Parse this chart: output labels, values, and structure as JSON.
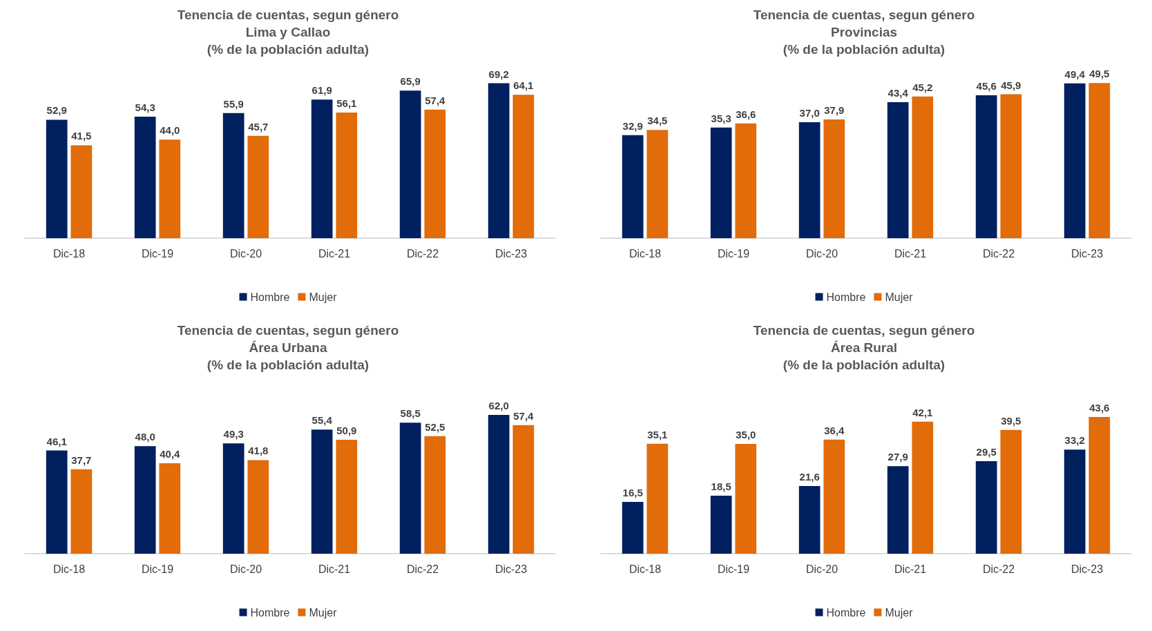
{
  "chart_data": [
    {
      "type": "bar",
      "title": "Tenencia de cuentas, segun género",
      "subtitle": "Lima y Callao\n(% de la población adulta)",
      "categories": [
        "Dic-18",
        "Dic-19",
        "Dic-20",
        "Dic-21",
        "Dic-22",
        "Dic-23"
      ],
      "series": [
        {
          "name": "Hombre",
          "color": "#002060",
          "values": [
            52.9,
            54.3,
            55.9,
            61.9,
            65.9,
            69.2
          ],
          "value_labels": [
            "52,9",
            "54,3",
            "55,9",
            "61,9",
            "65,9",
            "69,2"
          ]
        },
        {
          "name": "Mujer",
          "color": "#e26b0a",
          "values": [
            41.5,
            44.0,
            45.7,
            56.1,
            57.4,
            64.1
          ],
          "value_labels": [
            "41,5",
            "44,0",
            "45,7",
            "56,1",
            "57,4",
            "64,1"
          ]
        }
      ],
      "legend": "bottom"
    },
    {
      "type": "bar",
      "title": "Tenencia de cuentas, segun género",
      "subtitle": "Provincias\n(% de la población adulta)",
      "categories": [
        "Dic-18",
        "Dic-19",
        "Dic-20",
        "Dic-21",
        "Dic-22",
        "Dic-23"
      ],
      "series": [
        {
          "name": "Hombre",
          "color": "#002060",
          "values": [
            32.9,
            35.3,
            37.0,
            43.4,
            45.6,
            49.4
          ],
          "value_labels": [
            "32,9",
            "35,3",
            "37,0",
            "43,4",
            "45,6",
            "49,4"
          ]
        },
        {
          "name": "Mujer",
          "color": "#e26b0a",
          "values": [
            34.5,
            36.6,
            37.9,
            45.2,
            45.9,
            49.5
          ],
          "value_labels": [
            "34,5",
            "36,6",
            "37,9",
            "45,2",
            "45,9",
            "49,5"
          ]
        }
      ],
      "legend": "bottom"
    },
    {
      "type": "bar",
      "title": "Tenencia de cuentas, segun género",
      "subtitle": "Área Urbana\n(% de la población adulta)",
      "categories": [
        "Dic-18",
        "Dic-19",
        "Dic-20",
        "Dic-21",
        "Dic-22",
        "Dic-23"
      ],
      "series": [
        {
          "name": "Hombre",
          "color": "#002060",
          "values": [
            46.1,
            48.0,
            49.3,
            55.4,
            58.5,
            62.0
          ],
          "value_labels": [
            "46,1",
            "48,0",
            "49,3",
            "55,4",
            "58,5",
            "62,0"
          ]
        },
        {
          "name": "Mujer",
          "color": "#e26b0a",
          "values": [
            37.7,
            40.4,
            41.8,
            50.9,
            52.5,
            57.4
          ],
          "value_labels": [
            "37,7",
            "40,4",
            "41,8",
            "50,9",
            "52,5",
            "57,4"
          ]
        }
      ],
      "legend": "bottom"
    },
    {
      "type": "bar",
      "title": "Tenencia de cuentas, segun género",
      "subtitle": "Área Rural\n(% de la población adulta)",
      "categories": [
        "Dic-18",
        "Dic-19",
        "Dic-20",
        "Dic-21",
        "Dic-22",
        "Dic-23"
      ],
      "series": [
        {
          "name": "Hombre",
          "color": "#002060",
          "values": [
            16.5,
            18.5,
            21.6,
            27.9,
            29.5,
            33.2
          ],
          "value_labels": [
            "16,5",
            "18,5",
            "21,6",
            "27,9",
            "29,5",
            "33,2"
          ]
        },
        {
          "name": "Mujer",
          "color": "#e26b0a",
          "values": [
            35.1,
            35.0,
            36.4,
            42.1,
            39.5,
            43.6
          ],
          "value_labels": [
            "35,1",
            "35,0",
            "36,4",
            "42,1",
            "39,5",
            "43,6"
          ]
        }
      ],
      "legend": "bottom"
    }
  ]
}
